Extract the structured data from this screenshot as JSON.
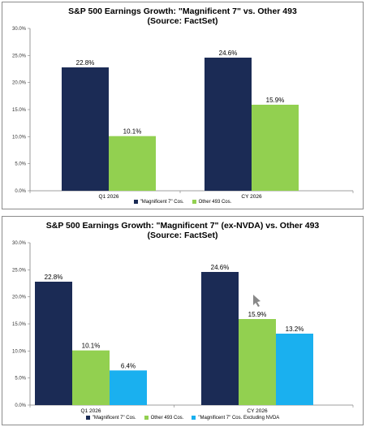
{
  "colors": {
    "mag7": "#1b2b55",
    "other493": "#92d050",
    "mag7_ex_nvda": "#1ab0ef",
    "cursor": "#888888"
  },
  "charts": [
    {
      "title": "S&P 500 Earnings Growth: \"Magnificent 7\" vs. Other 493",
      "subtitle": "(Source: FactSet)"
    },
    {
      "title": "S&P 500 Earnings Growth: \"Magnificent 7\" (ex-NVDA) vs. Other 493",
      "subtitle": "(Source: FactSet)"
    }
  ],
  "chart_data": [
    {
      "type": "bar",
      "title": "S&P 500 Earnings Growth: \"Magnificent 7\" vs. Other 493",
      "subtitle": "(Source: FactSet)",
      "categories": [
        "Q1 2026",
        "CY 2026"
      ],
      "series": [
        {
          "name": "\"Magnificent 7\" Cos.",
          "values": [
            22.8,
            24.6
          ],
          "labels": [
            "22.8%",
            "24.6%"
          ],
          "color": "#1b2b55"
        },
        {
          "name": "Other 493 Cos.",
          "values": [
            10.1,
            15.9
          ],
          "labels": [
            "10.1%",
            "15.9%"
          ],
          "color": "#92d050"
        }
      ],
      "ylim": [
        0,
        30
      ],
      "yticks": [
        "0.0%",
        "5.0%",
        "10.0%",
        "15.0%",
        "20.0%",
        "25.0%",
        "30.0%"
      ],
      "grid": false,
      "legend": "bottom"
    },
    {
      "type": "bar",
      "title": "S&P 500 Earnings Growth: \"Magnificent 7\" (ex-NVDA) vs. Other 493",
      "subtitle": "(Source: FactSet)",
      "categories": [
        "Q1 2026",
        "CY 2026"
      ],
      "series": [
        {
          "name": "\"Magnificent 7\" Cos.",
          "values": [
            22.8,
            24.6
          ],
          "labels": [
            "22.8%",
            "24.6%"
          ],
          "color": "#1b2b55"
        },
        {
          "name": "Other 493 Cos.",
          "values": [
            10.1,
            15.9
          ],
          "labels": [
            "10.1%",
            "15.9%"
          ],
          "color": "#92d050"
        },
        {
          "name": "\"Magnificent 7\" Cos. Excluding NVDA",
          "values": [
            6.4,
            13.2
          ],
          "labels": [
            "6.4%",
            "13.2%"
          ],
          "color": "#1ab0ef"
        }
      ],
      "ylim": [
        0,
        30
      ],
      "yticks": [
        "0.0%",
        "5.0%",
        "10.0%",
        "15.0%",
        "20.0%",
        "25.0%",
        "30.0%"
      ],
      "grid": false,
      "legend": "bottom"
    }
  ]
}
